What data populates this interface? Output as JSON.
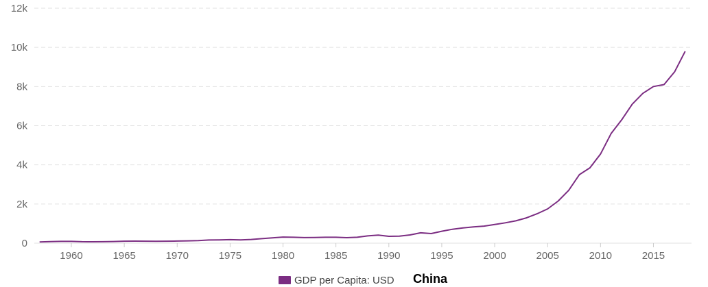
{
  "chart_data": {
    "type": "line",
    "title": "",
    "xlabel": "",
    "ylabel": "",
    "xlim": [
      1957,
      2018
    ],
    "ylim": [
      0,
      12000
    ],
    "x_ticks": [
      1960,
      1965,
      1970,
      1975,
      1980,
      1985,
      1990,
      1995,
      2000,
      2005,
      2010,
      2015
    ],
    "x_tick_labels": [
      "1960",
      "1965",
      "1970",
      "1975",
      "1980",
      "1985",
      "1990",
      "1995",
      "2000",
      "2005",
      "2010",
      "2015"
    ],
    "y_ticks": [
      0,
      2000,
      4000,
      6000,
      8000,
      10000,
      12000
    ],
    "y_tick_labels": [
      "0",
      "2k",
      "4k",
      "6k",
      "8k",
      "10k",
      "12k"
    ],
    "grid": "horizontal dashed",
    "legend_position": "bottom-center",
    "legend_entry": "GDP per Capita: USD",
    "legend_suffix": "China",
    "series": [
      {
        "name": "GDP per Capita: USD",
        "color": "#7b2d82",
        "x": [
          1957,
          1958,
          1959,
          1960,
          1961,
          1962,
          1963,
          1964,
          1965,
          1966,
          1967,
          1968,
          1969,
          1970,
          1971,
          1972,
          1973,
          1974,
          1975,
          1976,
          1977,
          1978,
          1979,
          1980,
          1981,
          1982,
          1983,
          1984,
          1985,
          1986,
          1987,
          1988,
          1989,
          1990,
          1991,
          1992,
          1993,
          1994,
          1995,
          1996,
          1997,
          1998,
          1999,
          2000,
          2001,
          2002,
          2003,
          2004,
          2005,
          2006,
          2007,
          2008,
          2009,
          2010,
          2011,
          2012,
          2013,
          2014,
          2015,
          2016,
          2017,
          2018
        ],
        "values": [
          60,
          80,
          90,
          90,
          75,
          70,
          75,
          85,
          100,
          105,
          100,
          95,
          100,
          110,
          120,
          130,
          160,
          165,
          180,
          165,
          190,
          230,
          270,
          310,
          300,
          285,
          290,
          300,
          300,
          280,
          300,
          370,
          410,
          350,
          360,
          420,
          530,
          490,
          610,
          710,
          780,
          830,
          870,
          950,
          1040,
          1140,
          1290,
          1500,
          1750,
          2150,
          2700,
          3500,
          3850,
          4550,
          5600,
          6300,
          7100,
          7650,
          8000,
          8100,
          8750,
          9800
        ]
      }
    ]
  }
}
